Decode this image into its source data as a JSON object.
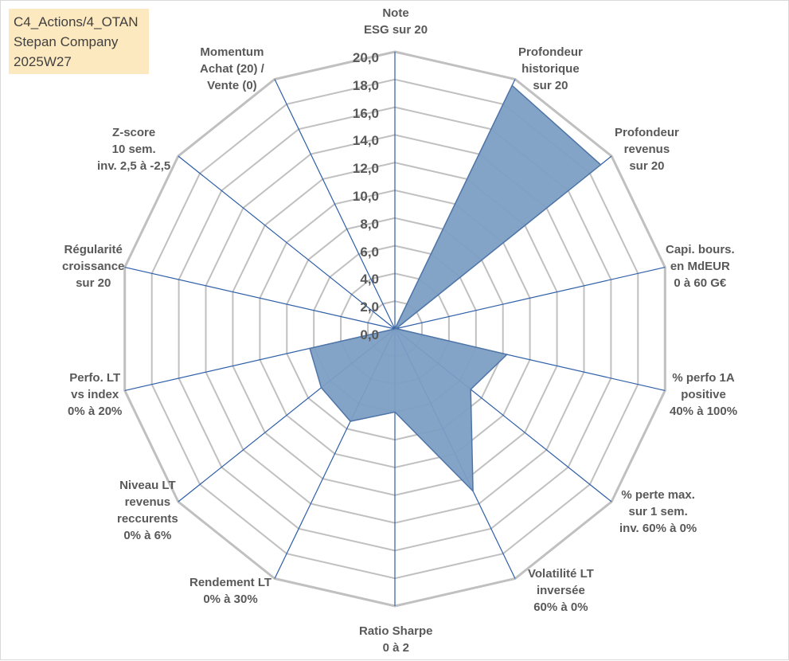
{
  "header": {
    "line1": "C4_Actions/4_OTAN",
    "line2": "Stepan Company",
    "line3": "2025W27"
  },
  "chart_data": {
    "type": "radar",
    "rmax": 20,
    "tick_step": 2,
    "ticks": [
      "0,0",
      "2,0",
      "4,0",
      "6,0",
      "8,0",
      "10,0",
      "12,0",
      "14,0",
      "16,0",
      "18,0",
      "20,0"
    ],
    "colors": {
      "fill": "#7c9ec4",
      "stroke": "#4f75a7",
      "grid": "#c0c0c0",
      "spoke": "#2e5fa8"
    },
    "axes": [
      {
        "lines": [
          "Note",
          "ESG sur 20"
        ]
      },
      {
        "lines": [
          "Profondeur",
          "historique",
          "sur 20"
        ]
      },
      {
        "lines": [
          "Profondeur",
          "revenus",
          "sur 20"
        ]
      },
      {
        "lines": [
          "Capi. bours.",
          "en MdEUR",
          "0 à 60 G€"
        ]
      },
      {
        "lines": [
          "% perfo 1A",
          "positive",
          "40% à 100%"
        ]
      },
      {
        "lines": [
          "% perte max.",
          "sur 1 sem.",
          "inv. 60% à 0%"
        ]
      },
      {
        "lines": [
          "Volatilité LT",
          "inversée",
          "60% à 0%"
        ]
      },
      {
        "lines": [
          "Ratio Sharpe",
          "0 à 2"
        ]
      },
      {
        "lines": [
          "Rendement LT",
          "0% à 30%"
        ]
      },
      {
        "lines": [
          "Niveau LT",
          "revenus",
          "reccurents",
          "0% à 6%"
        ]
      },
      {
        "lines": [
          "Perfo. LT",
          "vs index",
          "0% à 20%"
        ]
      },
      {
        "lines": [
          "Régularité",
          "croissance",
          "sur 20"
        ]
      },
      {
        "lines": [
          "Z-score",
          "10 sem.",
          "inv. 2,5 à -2,5"
        ]
      },
      {
        "lines": [
          "Momentum",
          "Achat (20) /",
          "Vente (0)"
        ]
      }
    ],
    "values": [
      0,
      19.5,
      19.0,
      0.1,
      8.3,
      7.0,
      13.0,
      6.0,
      7.4,
      6.8,
      6.3,
      0,
      0,
      0
    ]
  }
}
